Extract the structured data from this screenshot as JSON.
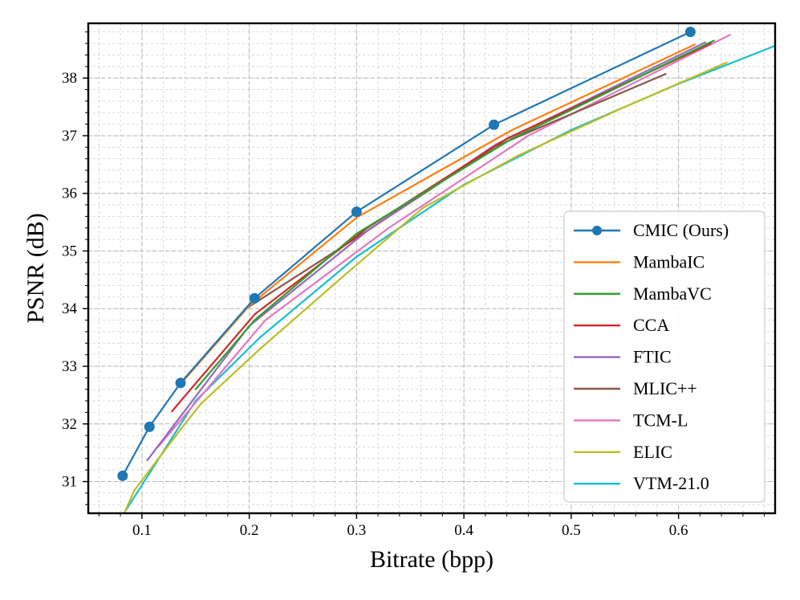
{
  "chart_data": {
    "type": "line",
    "title": "",
    "xlabel": "Bitrate (bpp)",
    "ylabel": "PSNR (dB)",
    "xlim": [
      0.05,
      0.69
    ],
    "ylim": [
      30.45,
      38.95
    ],
    "xticks": [
      0.1,
      0.2,
      0.3,
      0.4,
      0.5,
      0.6
    ],
    "xtick_labels": [
      "0.1",
      "0.2",
      "0.3",
      "0.4",
      "0.5",
      "0.6"
    ],
    "yticks": [
      31,
      32,
      33,
      34,
      35,
      36,
      37,
      38
    ],
    "ytick_labels": [
      "31",
      "32",
      "33",
      "34",
      "35",
      "36",
      "37",
      "38"
    ],
    "grid": true,
    "legend_position": "lower-right",
    "series": [
      {
        "name": "CMIC (Ours)",
        "color": "#1f77b4",
        "marker": "circle",
        "x": [
          0.082,
          0.107,
          0.136,
          0.205,
          0.3,
          0.428,
          0.611
        ],
        "y": [
          31.1,
          31.95,
          32.71,
          34.18,
          35.68,
          37.19,
          38.8
        ]
      },
      {
        "name": "MambaIC",
        "color": "#ff7f0e",
        "marker": "none",
        "x": [
          0.135,
          0.2,
          0.3,
          0.445,
          0.615
        ],
        "y": [
          32.67,
          34.05,
          35.58,
          37.1,
          38.58
        ]
      },
      {
        "name": "MambaVC",
        "color": "#2ca02c",
        "marker": "none",
        "x": [
          0.15,
          0.205,
          0.3,
          0.445,
          0.633
        ],
        "y": [
          32.6,
          33.8,
          35.3,
          36.95,
          38.65
        ]
      },
      {
        "name": "CCA",
        "color": "#d62728",
        "marker": "none",
        "x": [
          0.128,
          0.205,
          0.31,
          0.44,
          0.63
        ],
        "y": [
          32.22,
          33.9,
          35.4,
          36.95,
          38.6
        ]
      },
      {
        "name": "FTIC",
        "color": "#9467bd",
        "marker": "none",
        "x": [
          0.105,
          0.2,
          0.31,
          0.43,
          0.625
        ],
        "y": [
          31.37,
          33.7,
          35.35,
          36.85,
          38.62
        ]
      },
      {
        "name": "MLIC++",
        "color": "#8c564b",
        "marker": "none",
        "x": [
          0.197,
          0.31,
          0.43,
          0.588
        ],
        "y": [
          34.0,
          35.35,
          36.82,
          38.07
        ]
      },
      {
        "name": "TCM-L",
        "color": "#e377c2",
        "marker": "none",
        "x": [
          0.115,
          0.215,
          0.33,
          0.46,
          0.648
        ],
        "y": [
          31.6,
          33.8,
          35.4,
          37.0,
          38.75
        ]
      },
      {
        "name": "ELIC",
        "color": "#bcbd22",
        "marker": "none",
        "x": [
          0.084,
          0.093,
          0.138,
          0.155,
          0.21,
          0.29,
          0.362,
          0.45,
          0.55,
          0.645
        ],
        "y": [
          30.47,
          30.85,
          31.95,
          32.35,
          33.3,
          34.6,
          35.75,
          36.65,
          37.5,
          38.27
        ]
      },
      {
        "name": "VTM-21.0",
        "color": "#17becf",
        "marker": "none",
        "x": [
          0.085,
          0.15,
          0.21,
          0.3,
          0.4,
          0.5,
          0.6,
          0.69
        ],
        "y": [
          30.5,
          32.4,
          33.5,
          34.9,
          36.15,
          37.1,
          37.9,
          38.56
        ]
      }
    ]
  }
}
